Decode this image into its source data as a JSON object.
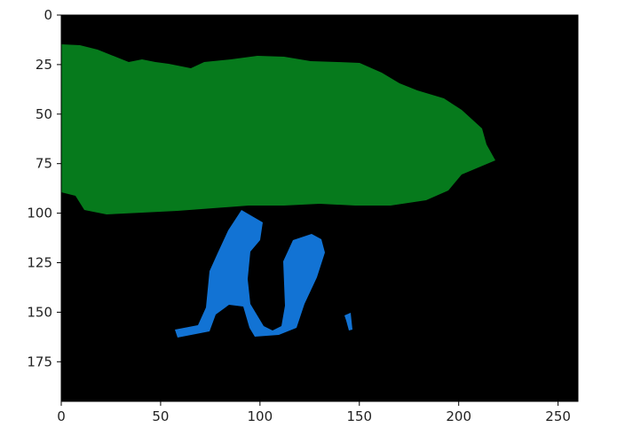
{
  "figure": {
    "type": "segmentation-mask-plot",
    "background_color": "#000000",
    "x_range": [
      0,
      260
    ],
    "y_range": [
      195,
      0
    ],
    "x_ticks": [
      "0",
      "50",
      "100",
      "150",
      "200",
      "250"
    ],
    "y_ticks": [
      "0",
      "25",
      "50",
      "75",
      "100",
      "125",
      "150",
      "175"
    ],
    "regions": [
      {
        "color": "#067a1c"
      },
      {
        "color": "#1273d4"
      },
      {
        "color": "#1273d4"
      }
    ]
  }
}
